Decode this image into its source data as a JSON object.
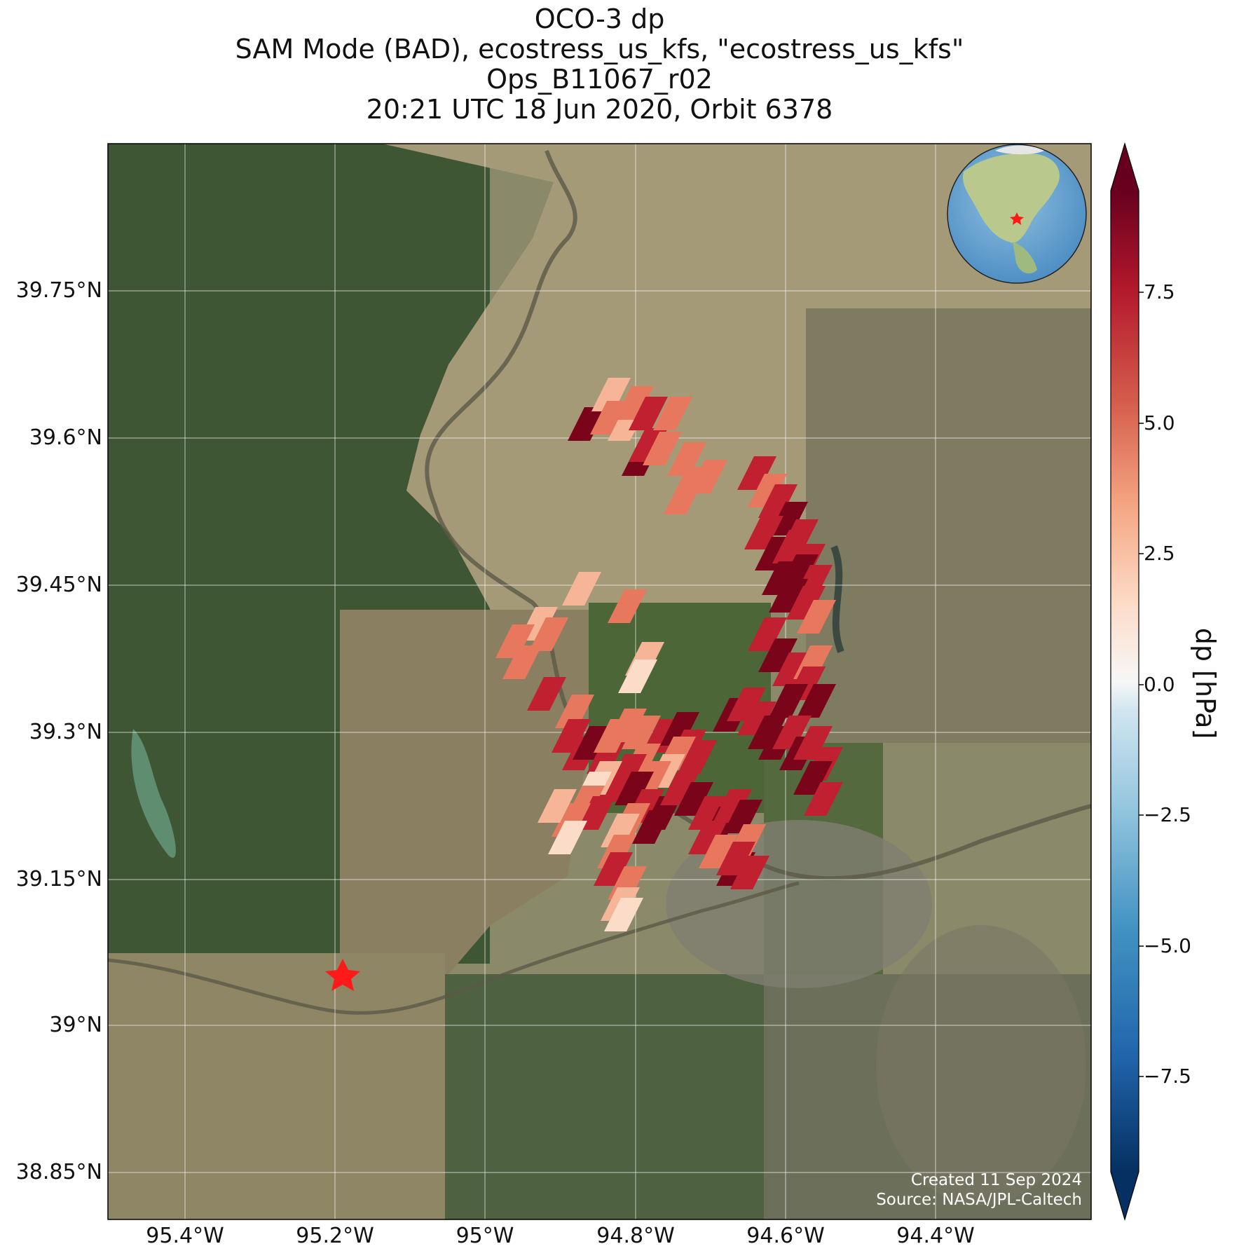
{
  "title": {
    "line1": "OCO-3 dp",
    "line2": "SAM Mode (BAD), ecostress_us_kfs, \"ecostress_us_kfs\"",
    "line3": "Ops_B11067_r02",
    "line4": "20:21 UTC 18 Jun 2020, Orbit 6378"
  },
  "axes": {
    "lat_ticks": [
      "39.75°N",
      "39.6°N",
      "39.45°N",
      "39.3°N",
      "39.15°N",
      "39°N",
      "38.85°N"
    ],
    "lon_ticks": [
      "95.4°W",
      "95.2°W",
      "95°W",
      "94.8°W",
      "94.6°W",
      "94.4°W"
    ],
    "grid": true
  },
  "colorbar": {
    "label": "dp [hPa]",
    "ticks": [
      "7.5",
      "5.0",
      "2.5",
      "0.0",
      "−2.5",
      "−5.0",
      "−7.5"
    ],
    "colormap": "RdBu_r",
    "extend": "both"
  },
  "credits": {
    "created": "Created 11 Sep 2024",
    "source": "Source: NASA/JPL-Caltech"
  },
  "colors": {
    "dark_red": "#7a0419",
    "red": "#c0202f",
    "salmon": "#e8785d",
    "light_salmon": "#f6b597",
    "pale": "#fbdcc8",
    "marker": "#ff1a1a"
  },
  "map_layers": {
    "basemap": "satellite imagery",
    "target_marker": "red star",
    "inset": "globe with red star over North America"
  }
}
